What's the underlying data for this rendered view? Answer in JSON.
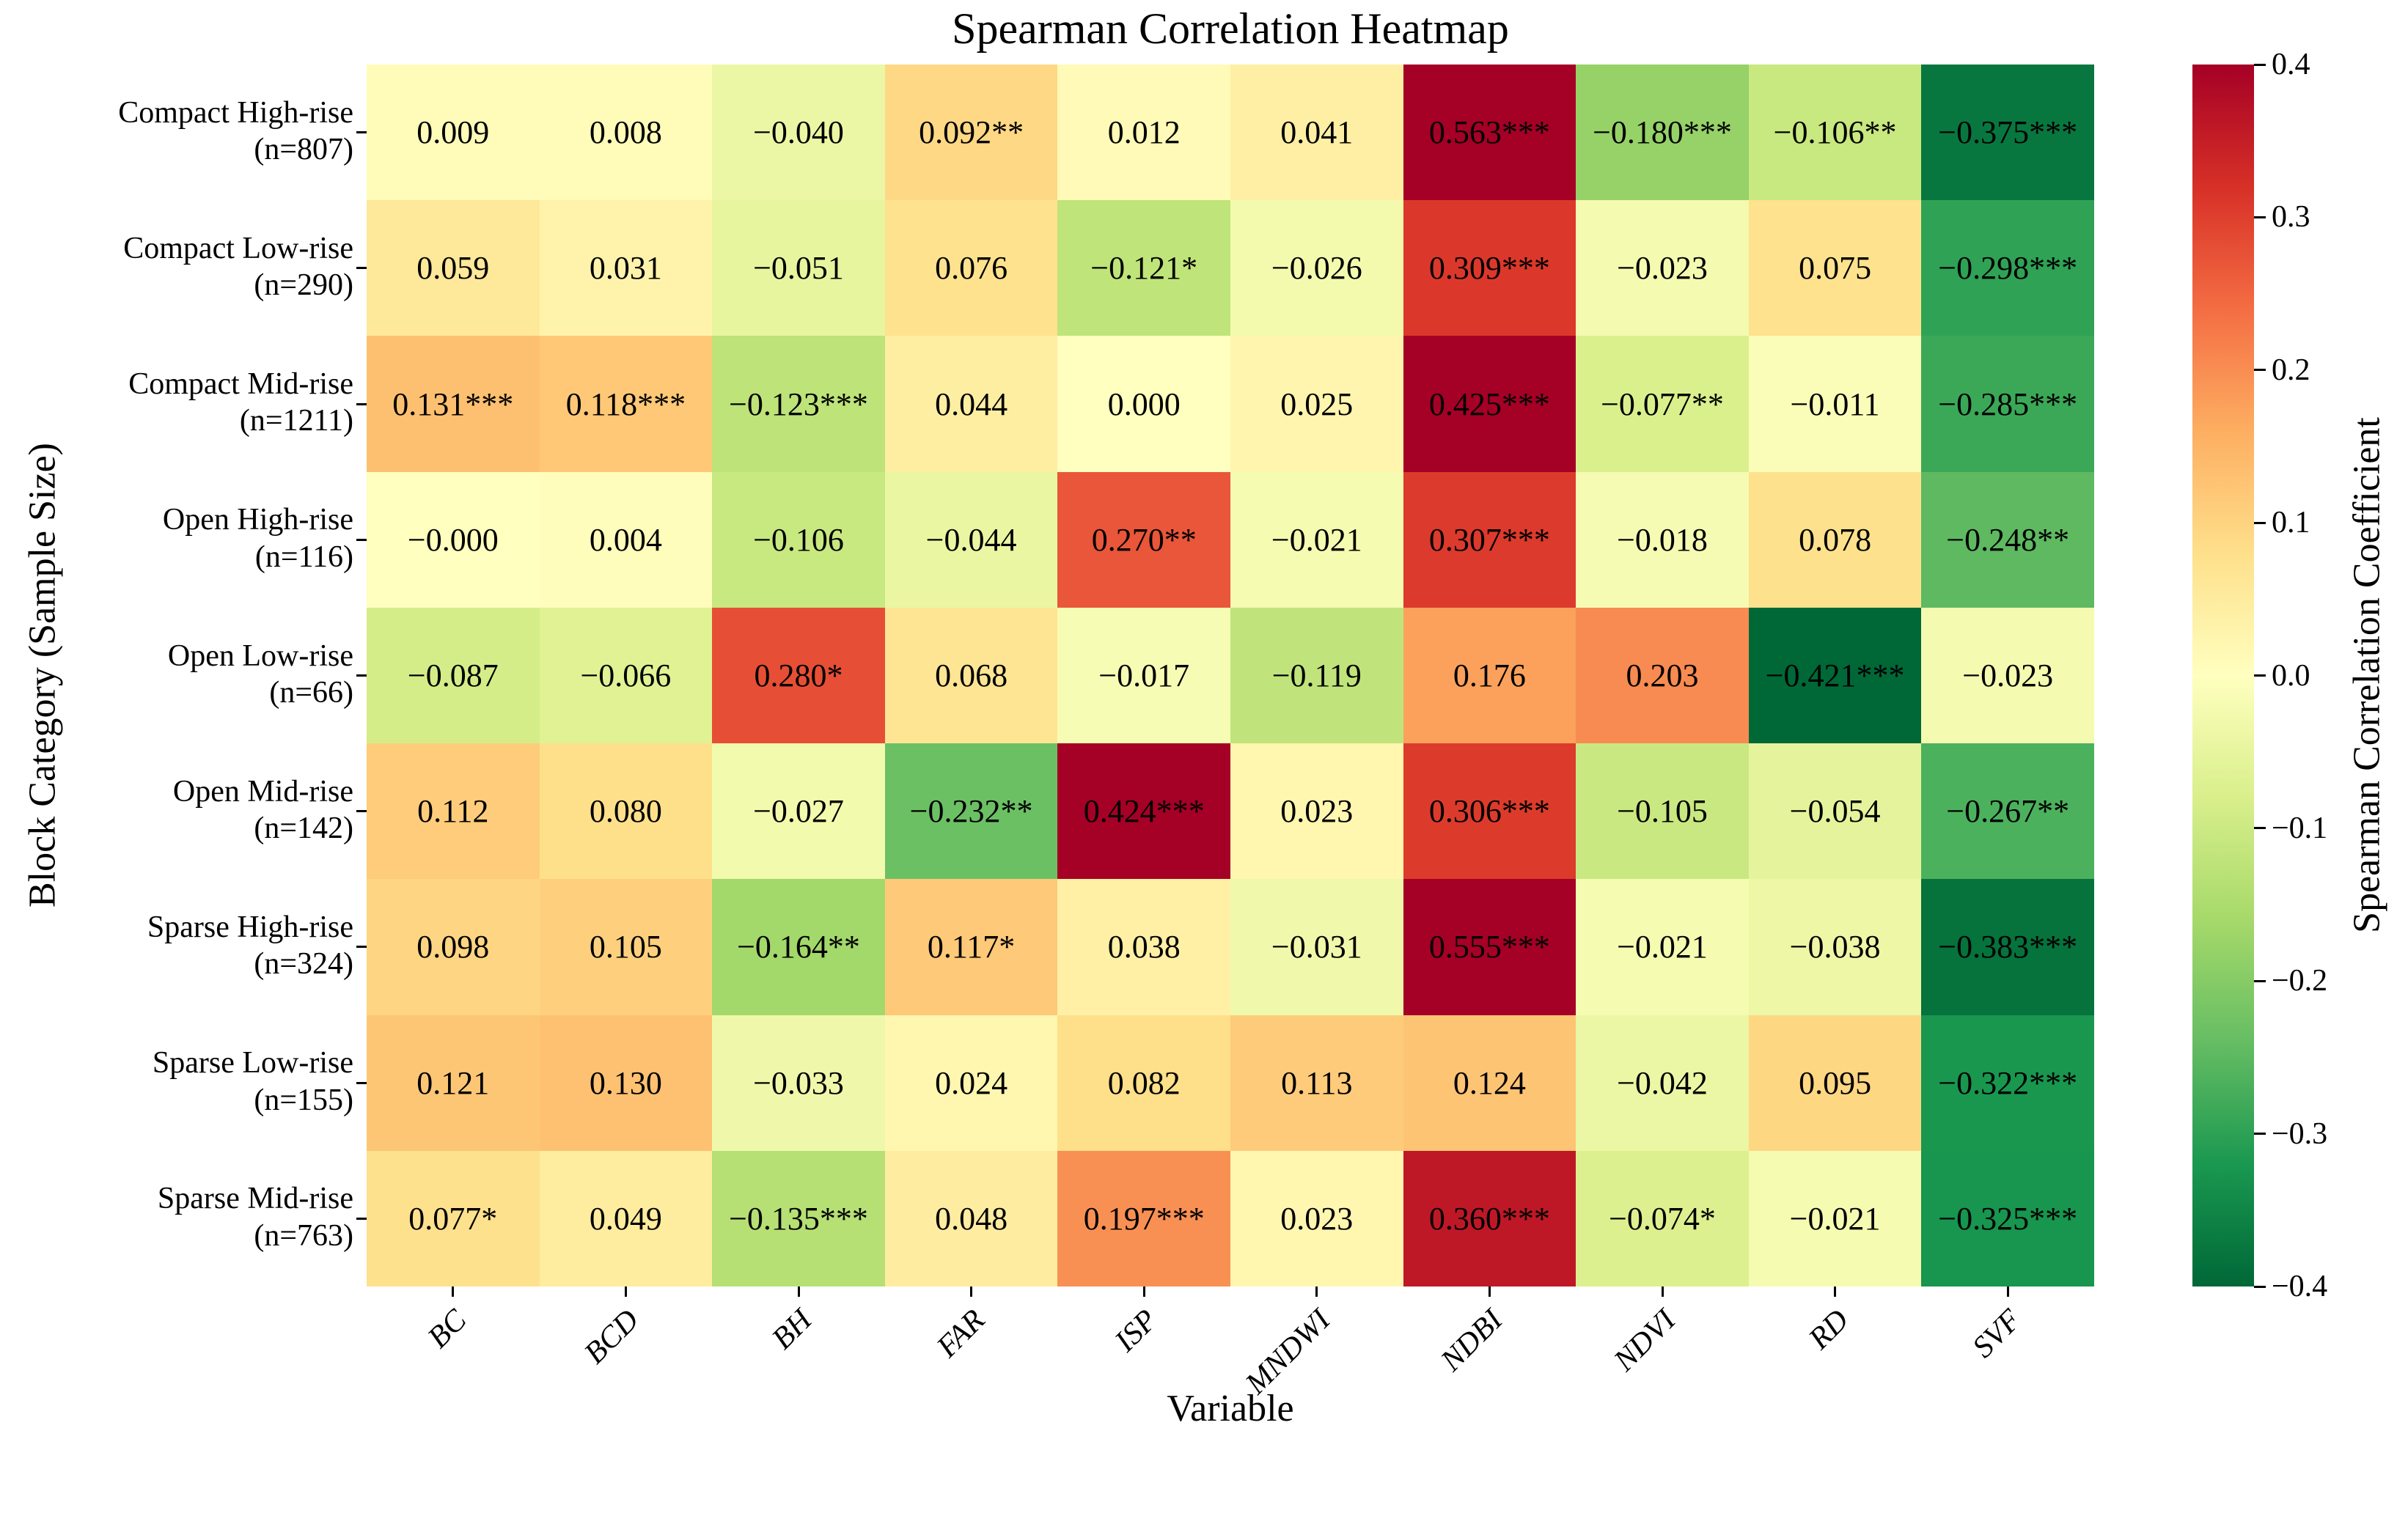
{
  "title": "Spearman Correlation Heatmap",
  "chart_data": {
    "type": "heatmap",
    "title": "Spearman Correlation Heatmap",
    "xlabel": "Variable",
    "ylabel": "Block Category (Sample Size)",
    "grid": "off",
    "columns": [
      "BC",
      "BCD",
      "BH",
      "FAR",
      "ISP",
      "MNDWI",
      "NDBI",
      "NDVI",
      "RD",
      "SVF"
    ],
    "rows": [
      {
        "category": "Compact High-rise",
        "sample_size": "(n=807)",
        "cells": [
          "0.009",
          "0.008",
          "−0.040",
          "0.092**",
          "0.012",
          "0.041",
          "0.563***",
          "−0.180***",
          "−0.106**",
          "−0.375***"
        ]
      },
      {
        "category": "Compact Low-rise",
        "sample_size": "(n=290)",
        "cells": [
          "0.059",
          "0.031",
          "−0.051",
          "0.076",
          "−0.121*",
          "−0.026",
          "0.309***",
          "−0.023",
          "0.075",
          "−0.298***"
        ]
      },
      {
        "category": "Compact Mid-rise",
        "sample_size": "(n=1211)",
        "cells": [
          "0.131***",
          "0.118***",
          "−0.123***",
          "0.044",
          "0.000",
          "0.025",
          "0.425***",
          "−0.077**",
          "−0.011",
          "−0.285***"
        ]
      },
      {
        "category": "Open High-rise",
        "sample_size": "(n=116)",
        "cells": [
          "−0.000",
          "0.004",
          "−0.106",
          "−0.044",
          "0.270**",
          "−0.021",
          "0.307***",
          "−0.018",
          "0.078",
          "−0.248**"
        ]
      },
      {
        "category": "Open Low-rise",
        "sample_size": "(n=66)",
        "cells": [
          "−0.087",
          "−0.066",
          "0.280*",
          "0.068",
          "−0.017",
          "−0.119",
          "0.176",
          "0.203",
          "−0.421***",
          "−0.023"
        ]
      },
      {
        "category": "Open Mid-rise",
        "sample_size": "(n=142)",
        "cells": [
          "0.112",
          "0.080",
          "−0.027",
          "−0.232**",
          "0.424***",
          "0.023",
          "0.306***",
          "−0.105",
          "−0.054",
          "−0.267**"
        ]
      },
      {
        "category": "Sparse High-rise",
        "sample_size": "(n=324)",
        "cells": [
          "0.098",
          "0.105",
          "−0.164**",
          "0.117*",
          "0.038",
          "−0.031",
          "0.555***",
          "−0.021",
          "−0.038",
          "−0.383***"
        ]
      },
      {
        "category": "Sparse Low-rise",
        "sample_size": "(n=155)",
        "cells": [
          "0.121",
          "0.130",
          "−0.033",
          "0.024",
          "0.082",
          "0.113",
          "0.124",
          "−0.042",
          "0.095",
          "−0.322***"
        ]
      },
      {
        "category": "Sparse Mid-rise",
        "sample_size": "(n=763)",
        "cells": [
          "0.077*",
          "0.049",
          "−0.135***",
          "0.048",
          "0.197***",
          "0.023",
          "0.360***",
          "−0.074*",
          "−0.021",
          "−0.325***"
        ]
      }
    ],
    "colorbar": {
      "label": "Spearman Correlation Coefficient",
      "ticks": [
        "0.4",
        "0.3",
        "0.2",
        "0.1",
        "0.0",
        "−0.1",
        "−0.2",
        "−0.3",
        "−0.4"
      ],
      "vmin": -0.4,
      "vmax": 0.4,
      "colormap_stops_low_to_high": [
        "#006837",
        "#1a9850",
        "#66bd63",
        "#a6d96a",
        "#d9ef8b",
        "#ffffbf",
        "#fee08b",
        "#fdae61",
        "#f46d43",
        "#d73027",
        "#a50026"
      ]
    },
    "cell_text_color": "#000000"
  }
}
